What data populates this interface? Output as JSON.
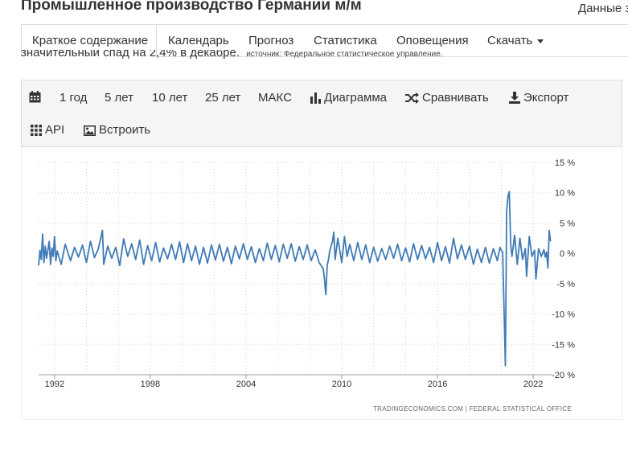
{
  "header": {
    "title": "Промышленное производство Германии м/м",
    "data_link": "Данные з"
  },
  "nav": {
    "items": [
      {
        "label": "Краткое содержание",
        "active": true
      },
      {
        "label": "Календарь"
      },
      {
        "label": "Прогноз"
      },
      {
        "label": "Статистика"
      },
      {
        "label": "Оповещения"
      },
      {
        "label": "Скачать"
      }
    ]
  },
  "summary": {
    "text": "значительный спад на 2,4% в декабре.",
    "source": "источник: Федеральное статистическое управление."
  },
  "toolbar": {
    "calendar_icon": "calendar-icon",
    "range_1y": "1 год",
    "range_5y": "5 лет",
    "range_10y": "10 лет",
    "range_25y": "25 лет",
    "range_max": "МАКС",
    "chart_label": "Диаграмма",
    "compare_label": "Сравнивать",
    "export_label": "Экспорт",
    "api_label": "API",
    "embed_label": "Встроить"
  },
  "chart_data": {
    "type": "line",
    "title": "",
    "xlabel": "",
    "ylabel": "",
    "line_color": "#3f7ab6",
    "grid": "dotted vertical and horizontal",
    "x_range": [
      "1991-01",
      "2023-01"
    ],
    "ylim": [
      -20,
      15
    ],
    "y_ticks": [
      "15 %",
      "10 %",
      "5 %",
      "0 %",
      "-5 %",
      "-10 %",
      "-15 %",
      "-20 %"
    ],
    "y_tick_values": [
      15,
      10,
      5,
      0,
      -5,
      -10,
      -15,
      -20
    ],
    "x_ticks": [
      "1992",
      "1998",
      "2004",
      "2010",
      "2016",
      "2022"
    ],
    "credit": "TRADINGECONOMICS.COM  |  FEDERAL STATISTICAL OFFICE",
    "series": [
      {
        "values": [
          {
            "x": "1991-01",
            "y": -2.0
          },
          {
            "x": "1991-02",
            "y": 0.5
          },
          {
            "x": "1991-03",
            "y": -1.0
          },
          {
            "x": "1991-04",
            "y": 3.2
          },
          {
            "x": "1991-05",
            "y": -1.5
          },
          {
            "x": "1991-06",
            "y": 1.2
          },
          {
            "x": "1991-07",
            "y": -0.8
          },
          {
            "x": "1991-08",
            "y": 0.6
          },
          {
            "x": "1991-09",
            "y": 2.0
          },
          {
            "x": "1991-10",
            "y": -1.8
          },
          {
            "x": "1991-11",
            "y": 0.9
          },
          {
            "x": "1991-12",
            "y": -0.5
          },
          {
            "x": "1992-01",
            "y": 2.8
          },
          {
            "x": "1992-02",
            "y": -1.2
          },
          {
            "x": "1992-03",
            "y": 0.4
          },
          {
            "x": "1992-06",
            "y": -1.8
          },
          {
            "x": "1992-09",
            "y": 1.5
          },
          {
            "x": "1993-01",
            "y": -1.2
          },
          {
            "x": "1993-04",
            "y": 1.0
          },
          {
            "x": "1993-07",
            "y": -0.6
          },
          {
            "x": "1993-10",
            "y": 1.4
          },
          {
            "x": "1994-01",
            "y": -1.5
          },
          {
            "x": "1994-04",
            "y": 2.0
          },
          {
            "x": "1994-07",
            "y": -0.7
          },
          {
            "x": "1994-10",
            "y": 0.8
          },
          {
            "x": "1995-01",
            "y": 3.8
          },
          {
            "x": "1995-02",
            "y": -1.8
          },
          {
            "x": "1995-05",
            "y": 1.2
          },
          {
            "x": "1995-08",
            "y": -0.8
          },
          {
            "x": "1995-11",
            "y": 1.0
          },
          {
            "x": "1996-02",
            "y": -2.0
          },
          {
            "x": "1996-05",
            "y": 2.4
          },
          {
            "x": "1996-08",
            "y": -0.5
          },
          {
            "x": "1996-11",
            "y": 1.6
          },
          {
            "x": "1997-02",
            "y": -1.0
          },
          {
            "x": "1997-05",
            "y": 2.2
          },
          {
            "x": "1997-08",
            "y": -1.8
          },
          {
            "x": "1997-11",
            "y": 1.3
          },
          {
            "x": "1998-02",
            "y": -1.2
          },
          {
            "x": "1998-05",
            "y": 1.8
          },
          {
            "x": "1998-08",
            "y": -1.4
          },
          {
            "x": "1998-11",
            "y": 0.9
          },
          {
            "x": "1999-02",
            "y": -0.9
          },
          {
            "x": "1999-05",
            "y": 1.5
          },
          {
            "x": "1999-08",
            "y": -1.0
          },
          {
            "x": "1999-11",
            "y": 1.9
          },
          {
            "x": "2000-02",
            "y": -1.5
          },
          {
            "x": "2000-05",
            "y": 1.6
          },
          {
            "x": "2000-08",
            "y": -1.2
          },
          {
            "x": "2000-11",
            "y": 1.2
          },
          {
            "x": "2001-02",
            "y": -1.8
          },
          {
            "x": "2001-05",
            "y": 1.0
          },
          {
            "x": "2001-08",
            "y": -1.6
          },
          {
            "x": "2001-11",
            "y": 1.4
          },
          {
            "x": "2002-02",
            "y": -1.1
          },
          {
            "x": "2002-05",
            "y": 1.5
          },
          {
            "x": "2002-08",
            "y": -1.3
          },
          {
            "x": "2002-11",
            "y": 1.0
          },
          {
            "x": "2003-02",
            "y": -1.7
          },
          {
            "x": "2003-05",
            "y": 1.2
          },
          {
            "x": "2003-08",
            "y": -0.9
          },
          {
            "x": "2003-11",
            "y": 1.6
          },
          {
            "x": "2004-02",
            "y": -1.0
          },
          {
            "x": "2004-05",
            "y": 1.1
          },
          {
            "x": "2004-08",
            "y": -1.5
          },
          {
            "x": "2004-11",
            "y": 0.8
          },
          {
            "x": "2005-02",
            "y": -1.2
          },
          {
            "x": "2005-05",
            "y": 1.7
          },
          {
            "x": "2005-08",
            "y": -1.0
          },
          {
            "x": "2005-11",
            "y": 1.3
          },
          {
            "x": "2006-02",
            "y": -1.4
          },
          {
            "x": "2006-05",
            "y": 1.5
          },
          {
            "x": "2006-08",
            "y": -0.8
          },
          {
            "x": "2006-11",
            "y": 1.6
          },
          {
            "x": "2007-02",
            "y": -1.3
          },
          {
            "x": "2007-05",
            "y": 1.1
          },
          {
            "x": "2007-08",
            "y": -1.0
          },
          {
            "x": "2007-11",
            "y": 1.4
          },
          {
            "x": "2008-02",
            "y": -1.2
          },
          {
            "x": "2008-05",
            "y": 0.6
          },
          {
            "x": "2008-08",
            "y": -1.5
          },
          {
            "x": "2008-11",
            "y": -2.5
          },
          {
            "x": "2008-12",
            "y": -4.2
          },
          {
            "x": "2009-01",
            "y": -6.8
          },
          {
            "x": "2009-02",
            "y": -2.0
          },
          {
            "x": "2009-03",
            "y": -1.0
          },
          {
            "x": "2009-04",
            "y": 0.5
          },
          {
            "x": "2009-06",
            "y": 2.0
          },
          {
            "x": "2009-07",
            "y": 3.5
          },
          {
            "x": "2009-08",
            "y": -1.0
          },
          {
            "x": "2009-10",
            "y": 2.5
          },
          {
            "x": "2010-01",
            "y": -1.5
          },
          {
            "x": "2010-03",
            "y": 2.8
          },
          {
            "x": "2010-05",
            "y": -0.5
          },
          {
            "x": "2010-07",
            "y": 1.5
          },
          {
            "x": "2010-10",
            "y": -1.2
          },
          {
            "x": "2011-01",
            "y": 1.8
          },
          {
            "x": "2011-04",
            "y": -1.0
          },
          {
            "x": "2011-07",
            "y": 1.4
          },
          {
            "x": "2011-10",
            "y": -1.5
          },
          {
            "x": "2012-01",
            "y": 1.0
          },
          {
            "x": "2012-04",
            "y": -1.3
          },
          {
            "x": "2012-07",
            "y": 0.8
          },
          {
            "x": "2012-10",
            "y": -1.0
          },
          {
            "x": "2013-01",
            "y": 1.2
          },
          {
            "x": "2013-04",
            "y": -0.8
          },
          {
            "x": "2013-07",
            "y": 1.5
          },
          {
            "x": "2013-10",
            "y": -1.2
          },
          {
            "x": "2014-01",
            "y": 0.9
          },
          {
            "x": "2014-04",
            "y": -1.4
          },
          {
            "x": "2014-07",
            "y": 1.6
          },
          {
            "x": "2014-10",
            "y": -1.0
          },
          {
            "x": "2015-01",
            "y": 1.3
          },
          {
            "x": "2015-04",
            "y": -0.9
          },
          {
            "x": "2015-07",
            "y": 1.0
          },
          {
            "x": "2015-10",
            "y": -1.5
          },
          {
            "x": "2016-01",
            "y": 1.8
          },
          {
            "x": "2016-04",
            "y": -1.2
          },
          {
            "x": "2016-07",
            "y": 1.1
          },
          {
            "x": "2016-10",
            "y": -1.6
          },
          {
            "x": "2017-01",
            "y": 2.5
          },
          {
            "x": "2017-04",
            "y": -0.9
          },
          {
            "x": "2017-07",
            "y": 1.4
          },
          {
            "x": "2017-10",
            "y": -1.0
          },
          {
            "x": "2018-01",
            "y": 1.2
          },
          {
            "x": "2018-04",
            "y": -1.8
          },
          {
            "x": "2018-07",
            "y": 0.7
          },
          {
            "x": "2018-10",
            "y": -1.5
          },
          {
            "x": "2019-01",
            "y": 1.0
          },
          {
            "x": "2019-04",
            "y": -1.6
          },
          {
            "x": "2019-07",
            "y": 0.8
          },
          {
            "x": "2019-10",
            "y": -1.2
          },
          {
            "x": "2019-12",
            "y": 1.0
          },
          {
            "x": "2020-01",
            "y": 0.5
          },
          {
            "x": "2020-02",
            "y": 0.2
          },
          {
            "x": "2020-03",
            "y": -9.0
          },
          {
            "x": "2020-04",
            "y": -18.5
          },
          {
            "x": "2020-05",
            "y": 7.0
          },
          {
            "x": "2020-06",
            "y": 9.5
          },
          {
            "x": "2020-07",
            "y": 10.2
          },
          {
            "x": "2020-08",
            "y": 1.5
          },
          {
            "x": "2020-09",
            "y": -0.5
          },
          {
            "x": "2020-11",
            "y": 3.0
          },
          {
            "x": "2021-01",
            "y": -1.8
          },
          {
            "x": "2021-03",
            "y": 2.5
          },
          {
            "x": "2021-05",
            "y": -1.0
          },
          {
            "x": "2021-07",
            "y": 0.8
          },
          {
            "x": "2021-08",
            "y": -3.8
          },
          {
            "x": "2021-10",
            "y": 2.8
          },
          {
            "x": "2021-12",
            "y": -0.5
          },
          {
            "x": "2022-02",
            "y": 0.5
          },
          {
            "x": "2022-03",
            "y": -4.2
          },
          {
            "x": "2022-05",
            "y": 0.8
          },
          {
            "x": "2022-07",
            "y": -0.5
          },
          {
            "x": "2022-09",
            "y": 0.6
          },
          {
            "x": "2022-10",
            "y": -0.6
          },
          {
            "x": "2022-11",
            "y": 0.2
          },
          {
            "x": "2022-12",
            "y": -2.4
          },
          {
            "x": "2023-01",
            "y": 3.8
          },
          {
            "x": "2023-02",
            "y": 2.0
          }
        ]
      }
    ]
  }
}
